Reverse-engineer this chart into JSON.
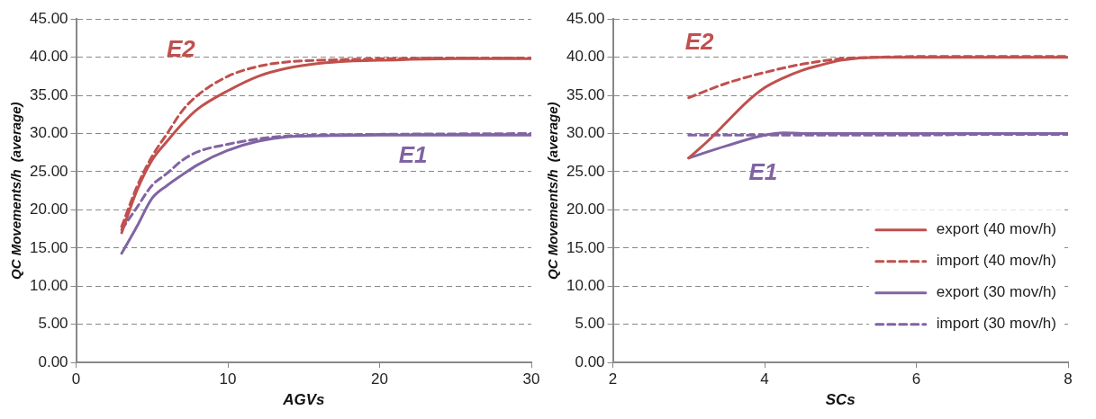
{
  "chart_data": [
    {
      "type": "line",
      "xlabel": "AGVs",
      "ylabel": "QC Movements/h  (average)",
      "xlim": [
        0,
        30
      ],
      "xticks": [
        0,
        10,
        20,
        30
      ],
      "ylim": [
        0,
        45
      ],
      "yticks": [
        {
          "value": 0,
          "label": "0.00"
        },
        {
          "value": 5,
          "label": "5.00"
        },
        {
          "value": 10,
          "label": "10.00"
        },
        {
          "value": 15,
          "label": "15.00"
        },
        {
          "value": 20,
          "label": "20.00"
        },
        {
          "value": 25,
          "label": "25.00"
        },
        {
          "value": 30,
          "label": "30.00"
        },
        {
          "value": 35,
          "label": "35.00"
        },
        {
          "value": 40,
          "label": "40.00"
        },
        {
          "value": 45,
          "label": "45.00"
        }
      ],
      "grid": "y",
      "legend": false,
      "marker": "none",
      "annotations": [
        "E2",
        "E1"
      ],
      "series": [
        {
          "color": "#c0504d",
          "line_style": "solid",
          "x": [
            3,
            4,
            5,
            6,
            7,
            8,
            10,
            12,
            14,
            16,
            18,
            20,
            25,
            30
          ],
          "values": [
            17.0,
            22.5,
            26.5,
            29.0,
            31.3,
            33.2,
            35.6,
            37.5,
            38.6,
            39.2,
            39.5,
            39.6,
            39.8,
            39.8
          ]
        },
        {
          "color": "#c0504d",
          "line_style": "dashed",
          "x": [
            3,
            4,
            5,
            6,
            7,
            8,
            10,
            12,
            14,
            16,
            20,
            25,
            30
          ],
          "values": [
            17.8,
            23.0,
            27.0,
            30.0,
            33.0,
            35.0,
            37.5,
            38.8,
            39.4,
            39.6,
            39.8,
            39.9,
            39.9
          ]
        },
        {
          "color": "#8064a2",
          "line_style": "solid",
          "x": [
            3,
            4,
            5,
            6,
            7,
            8,
            10,
            12,
            14,
            16,
            20,
            30
          ],
          "values": [
            14.3,
            17.8,
            21.5,
            23.2,
            24.6,
            25.9,
            27.8,
            29.0,
            29.6,
            29.7,
            29.8,
            29.8
          ]
        },
        {
          "color": "#8064a2",
          "line_style": "dashed",
          "x": [
            3,
            4,
            5,
            6,
            7,
            8,
            10,
            12,
            14,
            16,
            20,
            30
          ],
          "values": [
            17.4,
            20.3,
            23.2,
            24.8,
            26.5,
            27.6,
            28.6,
            29.3,
            29.7,
            29.8,
            29.9,
            30.0
          ]
        }
      ]
    },
    {
      "type": "line",
      "xlabel": "SCs",
      "ylabel": "QC Movements/h  (average)",
      "xlim": [
        2,
        8
      ],
      "xticks": [
        2,
        4,
        6,
        8
      ],
      "ylim": [
        0,
        45
      ],
      "yticks": [
        {
          "value": 0,
          "label": "0.00"
        },
        {
          "value": 5,
          "label": "5.00"
        },
        {
          "value": 10,
          "label": "10.00"
        },
        {
          "value": 15,
          "label": "15.00"
        },
        {
          "value": 20,
          "label": "20.00"
        },
        {
          "value": 25,
          "label": "25.00"
        },
        {
          "value": 30,
          "label": "30.00"
        },
        {
          "value": 35,
          "label": "35.00"
        },
        {
          "value": 40,
          "label": "40.00"
        },
        {
          "value": 45,
          "label": "45.00"
        }
      ],
      "grid": "y",
      "legend": "bottom right",
      "marker": "none",
      "annotations": [
        "E2",
        "E1"
      ],
      "series": [
        {
          "name": "export (40 mov/h)",
          "color": "#c0504d",
          "line_style": "solid",
          "x": [
            3,
            3.25,
            3.5,
            3.75,
            4,
            4.25,
            4.5,
            4.75,
            5,
            5.5,
            6,
            7,
            8
          ],
          "values": [
            26.8,
            29.0,
            31.5,
            34.0,
            36.0,
            37.3,
            38.3,
            39.0,
            39.6,
            40.0,
            40.0,
            40.0,
            40.0
          ]
        },
        {
          "name": "import (40 mov/h)",
          "color": "#c0504d",
          "line_style": "dashed",
          "x": [
            3,
            3.5,
            4,
            4.5,
            5,
            5.5,
            6,
            7,
            8
          ],
          "values": [
            34.7,
            36.6,
            38.0,
            39.1,
            39.8,
            40.0,
            40.1,
            40.1,
            40.1
          ]
        },
        {
          "name": "export (30 mov/h)",
          "color": "#8064a2",
          "line_style": "solid",
          "x": [
            3,
            3.5,
            4,
            4.25,
            4.5,
            5,
            6,
            7,
            8
          ],
          "values": [
            26.8,
            28.4,
            29.8,
            30.1,
            30.0,
            30.0,
            30.0,
            30.0,
            30.0
          ]
        },
        {
          "name": "import (30 mov/h)",
          "color": "#8064a2",
          "line_style": "dashed",
          "x": [
            3,
            4,
            5,
            6,
            7,
            8
          ],
          "values": [
            29.8,
            29.8,
            29.8,
            29.8,
            29.9,
            29.9
          ]
        }
      ]
    }
  ]
}
